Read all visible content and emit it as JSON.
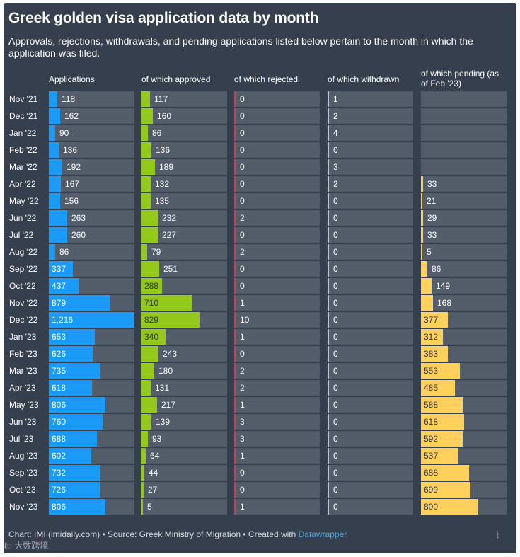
{
  "title": "Greek golden visa application data by month",
  "subtitle": "Approvals, rejections, withdrawals, and pending applications listed below pertain to the month in which the application was filed.",
  "footer": {
    "text": "Chart: IMI (imidaily.com) • Source: Greek Ministry of Migration • Created with ",
    "brand": "Datawrapper"
  },
  "watermark": "大数跨境",
  "watermark_mark": "⌇",
  "colors": {
    "background": "#363f4d",
    "track": "#535c69",
    "applications": "#1a9bf7",
    "approved": "#94c81a",
    "rejected": "#d03f50",
    "withdrawn": "#b8c4d6",
    "pending": "#ffd15c"
  },
  "chart_data": {
    "type": "bar",
    "categories": [
      "Nov '21",
      "Dec '21",
      "Jan '22",
      "Feb '22",
      "Mar '22",
      "Apr '22",
      "May '22",
      "Jun '22",
      "Jul '22",
      "Aug '22",
      "Sep '22",
      "Oct '22",
      "Nov '22",
      "Dec '22",
      "Jan '23",
      "Feb '23",
      "Mar '23",
      "Apr '23",
      "May '23",
      "Jun '23",
      "Jul '23",
      "Aug '23",
      "Sep '23",
      "Oct '23",
      "Nov '23"
    ],
    "series": [
      {
        "name": "Applications",
        "values": [
          118,
          162,
          90,
          136,
          192,
          167,
          156,
          263,
          260,
          86,
          337,
          437,
          879,
          1216,
          653,
          626,
          735,
          618,
          806,
          760,
          688,
          602,
          732,
          726,
          806
        ]
      },
      {
        "name": "of which approved",
        "values": [
          117,
          160,
          86,
          136,
          189,
          132,
          135,
          232,
          227,
          79,
          251,
          288,
          710,
          829,
          340,
          243,
          180,
          131,
          217,
          139,
          93,
          64,
          44,
          27,
          5
        ]
      },
      {
        "name": "of which rejected",
        "values": [
          0,
          0,
          0,
          0,
          0,
          0,
          0,
          2,
          0,
          2,
          0,
          0,
          1,
          10,
          1,
          0,
          2,
          2,
          1,
          3,
          3,
          1,
          0,
          0,
          1
        ]
      },
      {
        "name": "of which withdrawn",
        "values": [
          1,
          2,
          4,
          0,
          3,
          2,
          0,
          0,
          0,
          0,
          0,
          0,
          0,
          0,
          0,
          0,
          0,
          0,
          0,
          0,
          0,
          0,
          0,
          0,
          0
        ]
      },
      {
        "name": "of which pending (as of Feb '23)",
        "values": [
          null,
          null,
          null,
          null,
          null,
          33,
          21,
          29,
          33,
          5,
          86,
          149,
          168,
          377,
          312,
          383,
          553,
          485,
          588,
          618,
          592,
          537,
          688,
          699,
          800
        ]
      }
    ],
    "xlim": [
      0,
      1216
    ]
  }
}
